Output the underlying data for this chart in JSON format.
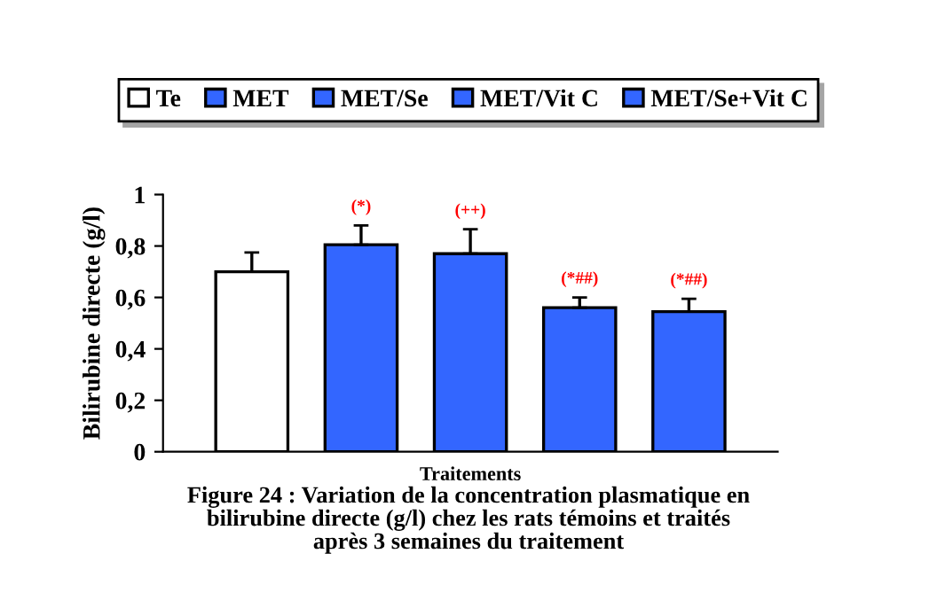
{
  "chart_data": {
    "type": "bar",
    "categories": [
      null
    ],
    "series": [
      {
        "name": "Te",
        "color": "#ffffff",
        "values": [
          0.7
        ],
        "errors": [
          0.075
        ],
        "value_labels": [
          null
        ]
      },
      {
        "name": "MET",
        "color": "#3366ff",
        "values": [
          0.805
        ],
        "errors": [
          0.075
        ],
        "value_labels": [
          "(*)"
        ]
      },
      {
        "name": "MET/Se",
        "color": "#3366ff",
        "values": [
          0.77
        ],
        "errors": [
          0.095
        ],
        "value_labels": [
          "(++)"
        ]
      },
      {
        "name": "MET/Vit C",
        "color": "#3366ff",
        "values": [
          0.56
        ],
        "errors": [
          0.04
        ],
        "value_labels": [
          "(*##)"
        ]
      },
      {
        "name": "MET/Se+Vit C",
        "color": "#3366ff",
        "values": [
          0.545
        ],
        "errors": [
          0.05
        ],
        "value_labels": [
          "(*##)"
        ]
      }
    ],
    "ylabel": "Bilirubine directe (g/l)",
    "xlabel": "Traitements",
    "ylim": [
      0,
      1
    ],
    "yticks": [
      0,
      {
        "value": 0.2,
        "label": "0,2"
      },
      {
        "value": 0.4,
        "label": "0,4"
      },
      {
        "value": 0.6,
        "label": "0,6"
      },
      {
        "value": 0.8,
        "label": "0,8"
      },
      1
    ],
    "grid": false,
    "legend": "top",
    "annotations": [
      "Figure 24 : Variation de la concentration plasmatique en\nbilirubine directe (g/l) chez les rats témoins et traités\naprès 3 semaines du traitement"
    ]
  }
}
